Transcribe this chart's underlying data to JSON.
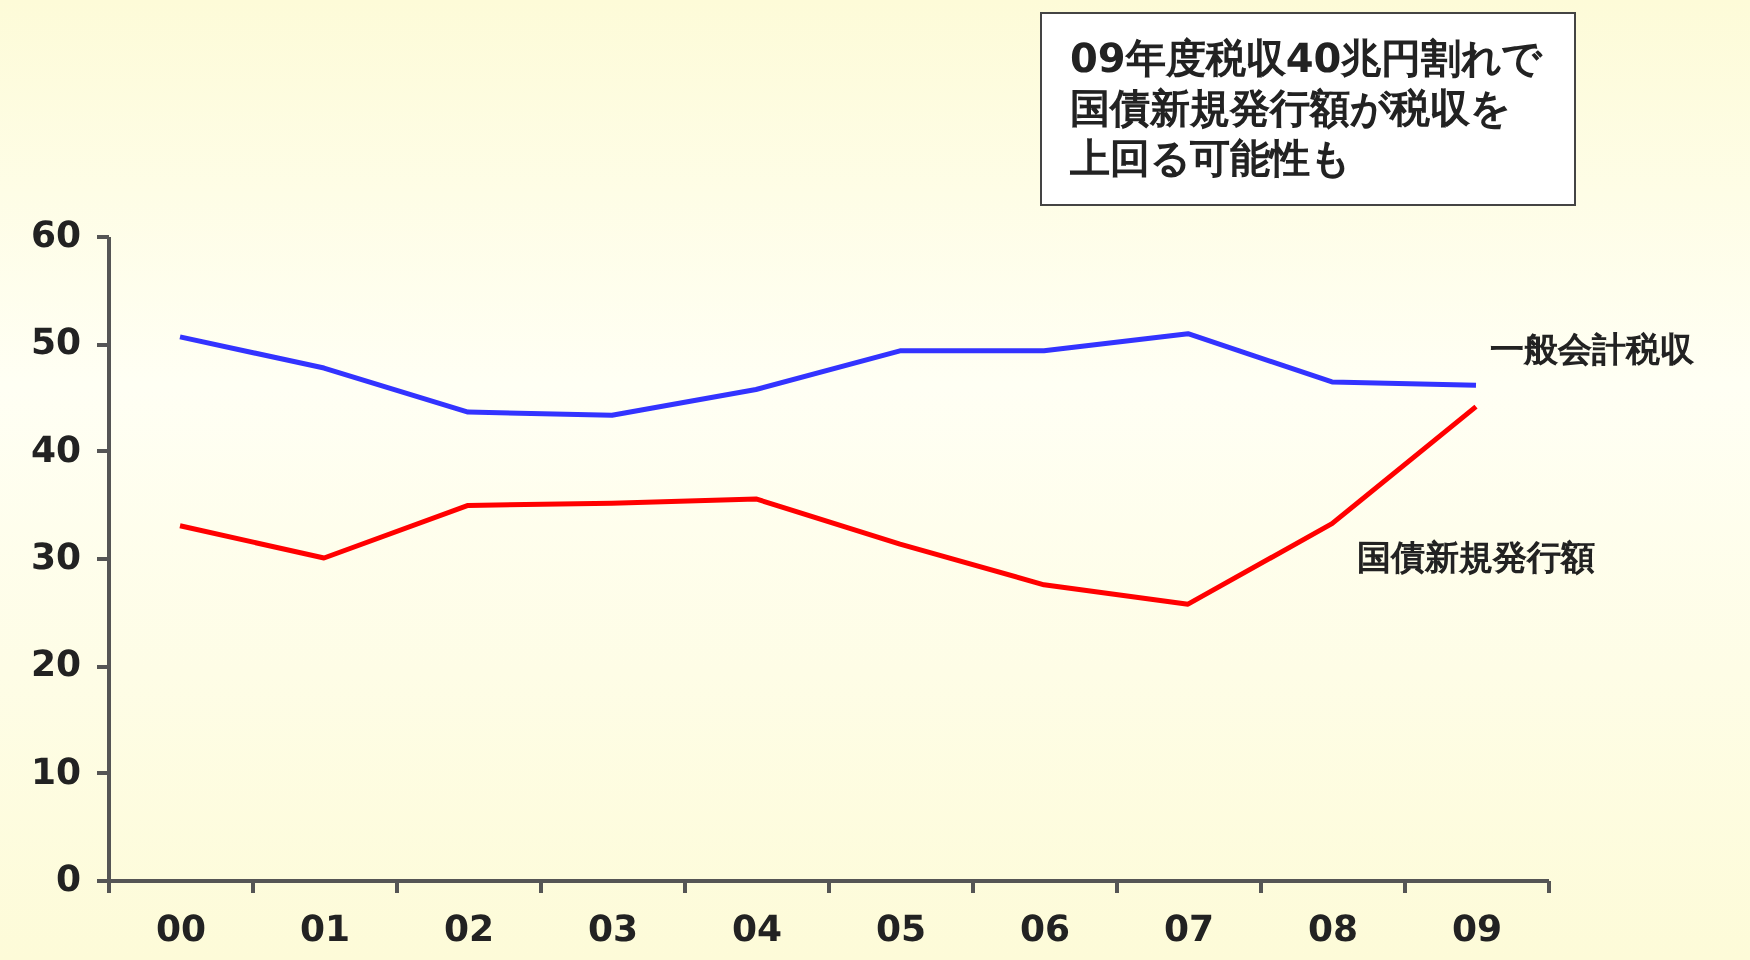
{
  "chart_data": {
    "type": "line",
    "categories": [
      "00",
      "01",
      "02",
      "03",
      "04",
      "05",
      "06",
      "07",
      "08",
      "09"
    ],
    "series": [
      {
        "name": "一般会計税収",
        "color": "#3333ff",
        "values": [
          50.6,
          47.7,
          43.6,
          43.3,
          45.7,
          49.3,
          49.3,
          50.9,
          46.4,
          46.1
        ]
      },
      {
        "name": "国債新規発行額",
        "color": "#ff0000",
        "values": [
          33.0,
          30.0,
          34.9,
          35.1,
          35.5,
          31.3,
          27.5,
          25.7,
          33.2,
          44.1
        ]
      }
    ],
    "ylim": [
      0,
      60
    ],
    "yticks": [
      0,
      10,
      20,
      30,
      40,
      50,
      60
    ],
    "grid": false,
    "legend": false,
    "marker": "none",
    "line_style": "solid",
    "annotations": [
      "09年度税収40兆円割れで国債新規発行額が税収を上回る可能性も"
    ]
  }
}
